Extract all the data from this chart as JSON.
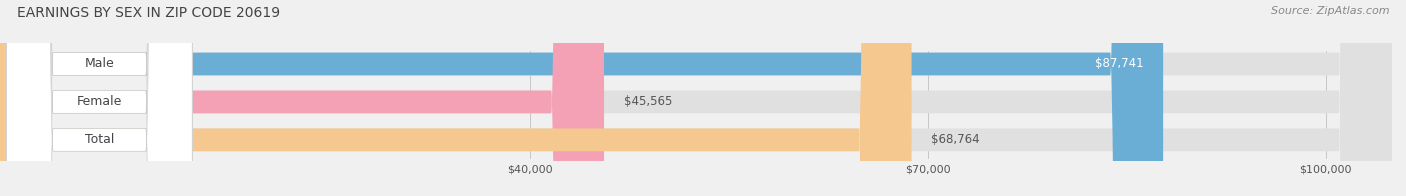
{
  "title": "EARNINGS BY SEX IN ZIP CODE 20619",
  "source": "Source: ZipAtlas.com",
  "categories": [
    "Male",
    "Female",
    "Total"
  ],
  "values": [
    87741,
    45565,
    68764
  ],
  "bar_colors": [
    "#6aaed6",
    "#f4a0b5",
    "#f5c890"
  ],
  "value_labels": [
    "$87,741",
    "$45,565",
    "$68,764"
  ],
  "value_label_colors": [
    "#ffffff",
    "#555555",
    "#555555"
  ],
  "xmin": 40000,
  "xmax": 100000,
  "xticks": [
    40000,
    70000,
    100000
  ],
  "xtick_labels": [
    "$40,000",
    "$70,000",
    "$100,000"
  ],
  "background_color": "#f0f0f0",
  "bar_background_color": "#e0e0e0",
  "title_fontsize": 10,
  "source_fontsize": 8,
  "label_fontsize": 9,
  "value_fontsize": 8.5
}
